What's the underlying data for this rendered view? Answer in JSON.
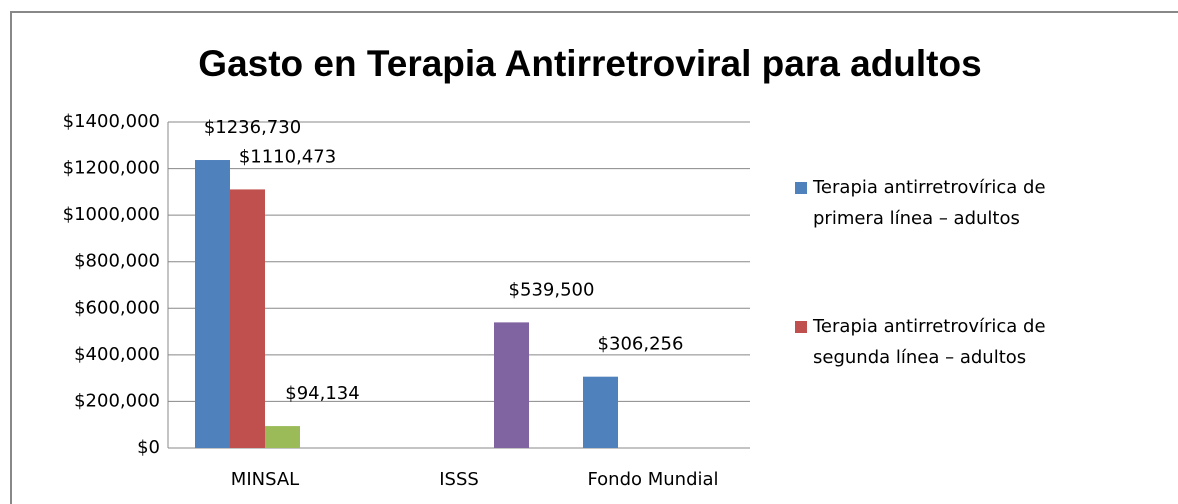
{
  "chart_data": {
    "type": "bar",
    "title": "Gasto en Terapia Antirretroviral para adultos",
    "categories": [
      "MINSAL",
      "ISSS",
      "Fondo Mundial"
    ],
    "series": [
      {
        "name": "Terapia antirretrovírica de primera línea – adultos",
        "color": "#4f81bd",
        "values": [
          1236730,
          null,
          306256
        ],
        "value_labels": [
          "$1236,730",
          null,
          "$306,256"
        ]
      },
      {
        "name": "Terapia antirretrovírica de segunda línea – adultos",
        "color": "#c0504d",
        "values": [
          1110473,
          null,
          null
        ],
        "value_labels": [
          "$1110,473",
          null,
          null
        ]
      },
      {
        "color": "#9bbb59",
        "values": [
          94134,
          null,
          null
        ],
        "value_labels": [
          "$94,134",
          null,
          null
        ]
      },
      {
        "color": "#8064a2",
        "values": [
          null,
          539500,
          null
        ],
        "value_labels": [
          null,
          "$539,500",
          null
        ]
      }
    ],
    "ylim": [
      0,
      1400000
    ],
    "yticks": [
      {
        "value": 0,
        "label": "$0"
      },
      {
        "value": 200000,
        "label": "$200,000"
      },
      {
        "value": 400000,
        "label": "$400,000"
      },
      {
        "value": 600000,
        "label": "$600,000"
      },
      {
        "value": 800000,
        "label": "$800,000"
      },
      {
        "value": 1000000,
        "label": "$1000,000"
      },
      {
        "value": 1200000,
        "label": "$1200,000"
      },
      {
        "value": 1400000,
        "label": "$1400,000"
      }
    ],
    "grid": true,
    "legend": "right"
  }
}
